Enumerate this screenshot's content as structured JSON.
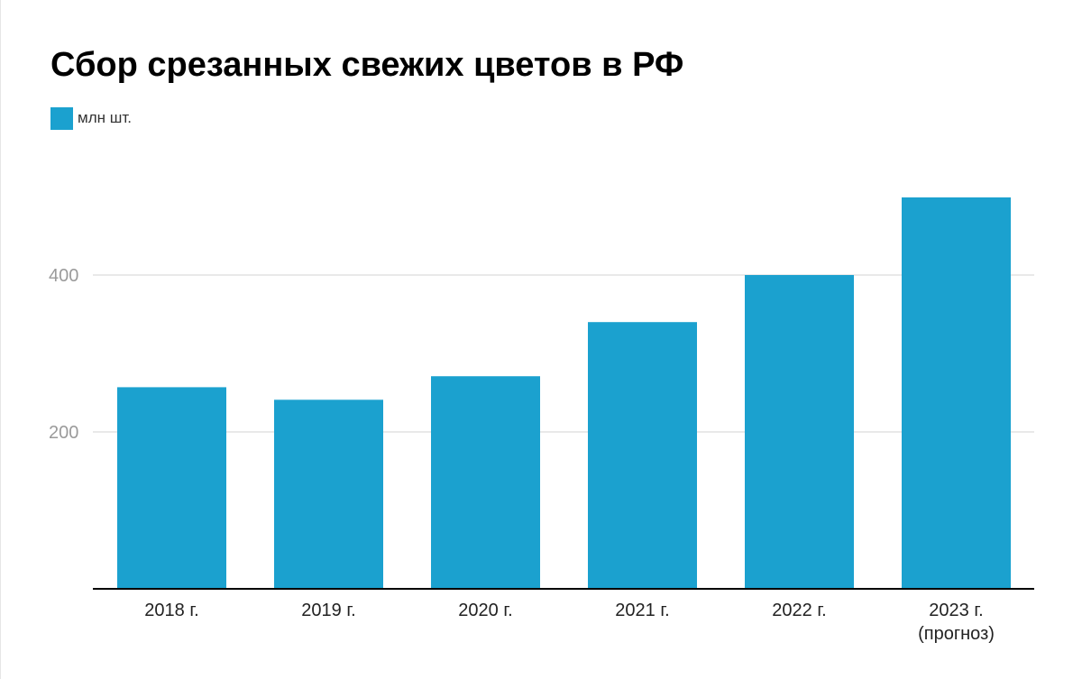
{
  "chart_data": {
    "type": "bar",
    "title": "Сбор срезанных свежих цветов в РФ",
    "series": [
      {
        "name": "млн шт.",
        "values": [
          257,
          241,
          271,
          340,
          400,
          499
        ]
      }
    ],
    "categories": [
      [
        "2018 г."
      ],
      [
        "2019 г."
      ],
      [
        "2020 г."
      ],
      [
        "2021 г."
      ],
      [
        "2022 г."
      ],
      [
        "2023 г.",
        "(прогноз)"
      ]
    ],
    "yticks": [
      200,
      400
    ],
    "ylim": [
      0,
      500
    ],
    "grid": true,
    "legend_position": "top-left",
    "colors": {
      "bar": "#1ba1cf",
      "grid": "#e2e2e2",
      "axis": "#000000"
    }
  }
}
